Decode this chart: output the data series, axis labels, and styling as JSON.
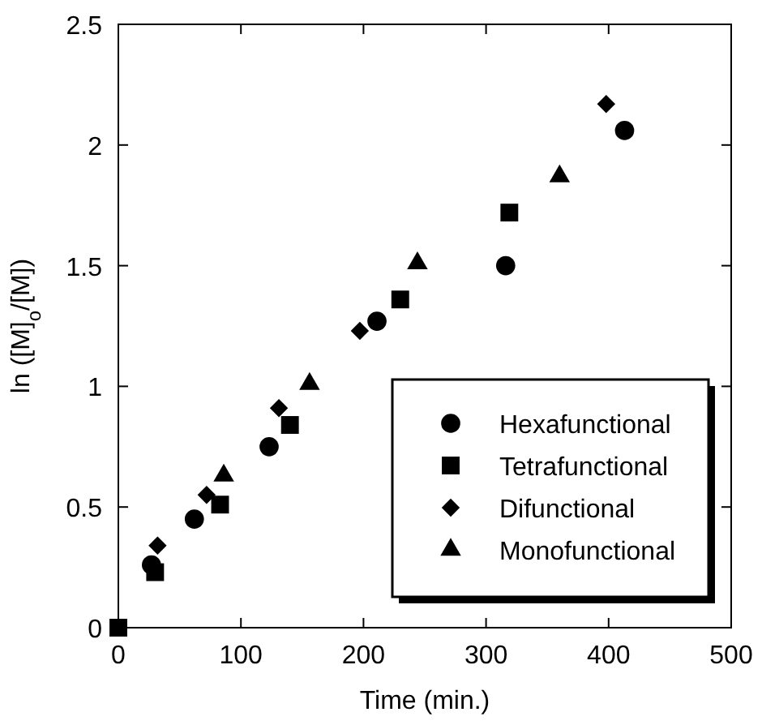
{
  "chart_data": {
    "type": "scatter",
    "xlabel": "Time (min.)",
    "ylabel": "ln ([M]$_{o}$/[M])",
    "xlim": [
      0,
      500
    ],
    "ylim": [
      0,
      2.5
    ],
    "xticks": [
      0,
      100,
      200,
      300,
      400,
      500
    ],
    "yticks": [
      0,
      0.5,
      1,
      1.5,
      2,
      2.5
    ],
    "legend": "bottom right",
    "grid": false,
    "series": [
      {
        "name": "Hexafunctional",
        "color": "#000000",
        "marker": "circle",
        "x": [
          27,
          62,
          123,
          211,
          316,
          413
        ],
        "values": [
          0.26,
          0.45,
          0.75,
          1.27,
          1.5,
          2.06
        ]
      },
      {
        "name": "Tetrafunctional",
        "color": "#000000",
        "marker": "square",
        "x": [
          0,
          30,
          83,
          140,
          230,
          319
        ],
        "values": [
          0,
          0.23,
          0.51,
          0.84,
          1.36,
          1.72
        ]
      },
      {
        "name": "Difunctional",
        "color": "#000000",
        "marker": "diamond",
        "x": [
          32,
          72,
          131,
          197,
          398
        ],
        "values": [
          0.34,
          0.55,
          0.91,
          1.23,
          2.17
        ]
      },
      {
        "name": "Monofunctional",
        "color": "#000000",
        "marker": "triangle",
        "x": [
          86,
          156,
          244,
          360
        ],
        "values": [
          0.63,
          1.01,
          1.51,
          1.87
        ]
      }
    ]
  }
}
